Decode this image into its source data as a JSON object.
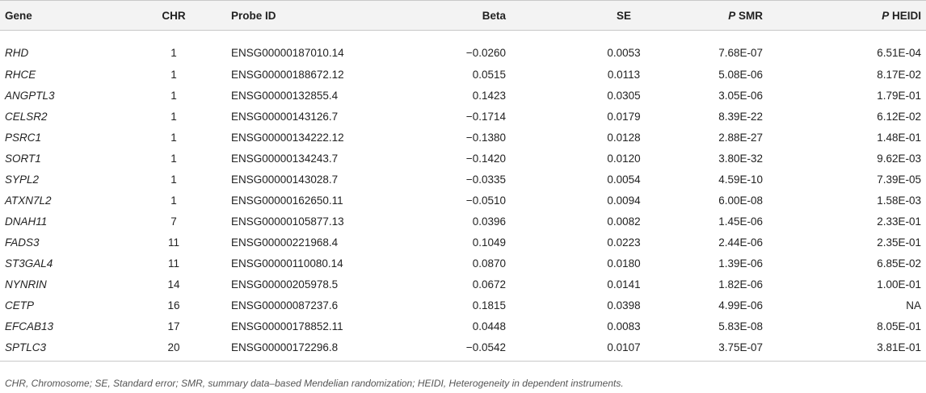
{
  "columns": [
    {
      "label": "Gene",
      "prefix": ""
    },
    {
      "label": "CHR",
      "prefix": ""
    },
    {
      "label": "Probe ID",
      "prefix": ""
    },
    {
      "label": "Beta",
      "prefix": ""
    },
    {
      "label": "SE",
      "prefix": ""
    },
    {
      "label": "SMR",
      "prefix": "P"
    },
    {
      "label": "HEIDI",
      "prefix": "P"
    }
  ],
  "rows": [
    [
      "RHD",
      "1",
      "ENSG00000187010.14",
      "−0.0260",
      "0.0053",
      "7.68E-07",
      "6.51E-04"
    ],
    [
      "RHCE",
      "1",
      "ENSG00000188672.12",
      "0.0515",
      "0.0113",
      "5.08E-06",
      "8.17E-02"
    ],
    [
      "ANGPTL3",
      "1",
      "ENSG00000132855.4",
      "0.1423",
      "0.0305",
      "3.05E-06",
      "1.79E-01"
    ],
    [
      "CELSR2",
      "1",
      "ENSG00000143126.7",
      "−0.1714",
      "0.0179",
      "8.39E-22",
      "6.12E-02"
    ],
    [
      "PSRC1",
      "1",
      "ENSG00000134222.12",
      "−0.1380",
      "0.0128",
      "2.88E-27",
      "1.48E-01"
    ],
    [
      "SORT1",
      "1",
      "ENSG00000134243.7",
      "−0.1420",
      "0.0120",
      "3.80E-32",
      "9.62E-03"
    ],
    [
      "SYPL2",
      "1",
      "ENSG00000143028.7",
      "−0.0335",
      "0.0054",
      "4.59E-10",
      "7.39E-05"
    ],
    [
      "ATXN7L2",
      "1",
      "ENSG00000162650.11",
      "−0.0510",
      "0.0094",
      "6.00E-08",
      "1.58E-03"
    ],
    [
      "DNAH11",
      "7",
      "ENSG00000105877.13",
      "0.0396",
      "0.0082",
      "1.45E-06",
      "2.33E-01"
    ],
    [
      "FADS3",
      "11",
      "ENSG00000221968.4",
      "0.1049",
      "0.0223",
      "2.44E-06",
      "2.35E-01"
    ],
    [
      "ST3GAL4",
      "11",
      "ENSG00000110080.14",
      "0.0870",
      "0.0180",
      "1.39E-06",
      "6.85E-02"
    ],
    [
      "NYNRIN",
      "14",
      "ENSG00000205978.5",
      "0.0672",
      "0.0141",
      "1.82E-06",
      "1.00E-01"
    ],
    [
      "CETP",
      "16",
      "ENSG00000087237.6",
      "0.1815",
      "0.0398",
      "4.99E-06",
      "NA"
    ],
    [
      "EFCAB13",
      "17",
      "ENSG00000178852.11",
      "0.0448",
      "0.0083",
      "5.83E-08",
      "8.05E-01"
    ],
    [
      "SPTLC3",
      "20",
      "ENSG00000172296.8",
      "−0.0542",
      "0.0107",
      "3.75E-07",
      "3.81E-01"
    ]
  ],
  "footnote": "CHR, Chromosome; SE, Standard error; SMR, summary data–based Mendelian randomization; HEIDI, Heterogeneity in dependent instruments."
}
